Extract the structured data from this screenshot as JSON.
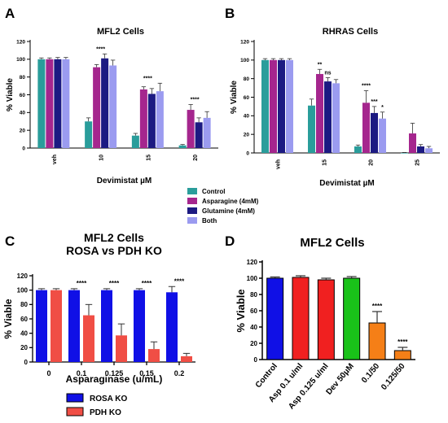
{
  "chart_data": [
    {
      "panel": "A",
      "type": "bar",
      "title": "MFL2 Cells",
      "xlabel": "Devimistat µM",
      "ylabel": "% Viable",
      "ylim": [
        0,
        120
      ],
      "yticks": [
        0,
        20,
        40,
        60,
        80,
        100,
        120
      ],
      "grid": false,
      "legend_position": "shared-below-A-B",
      "categories": [
        "veh",
        "10",
        "15",
        "20"
      ],
      "series": [
        {
          "name": "Control",
          "color": "#2a9d9b",
          "values": [
            100,
            30,
            14,
            3
          ],
          "errors": [
            1.5,
            4,
            2.5,
            1
          ]
        },
        {
          "name": "Asparagine (4mM)",
          "color": "#a5268e",
          "values": [
            100,
            91,
            66,
            43
          ],
          "errors": [
            1.5,
            3,
            3,
            6
          ]
        },
        {
          "name": "Glutamine (4mM)",
          "color": "#1c1a82",
          "values": [
            100,
            101,
            61,
            29
          ],
          "errors": [
            2,
            5,
            6,
            5
          ]
        },
        {
          "name": "Both",
          "color": "#9b9bf0",
          "values": [
            100,
            93,
            64,
            34
          ],
          "errors": [
            2,
            6,
            9,
            7
          ]
        }
      ],
      "annotations": [
        {
          "category": "10",
          "text": "****"
        },
        {
          "category": "15",
          "text": "****"
        },
        {
          "category": "20",
          "text": "****"
        }
      ]
    },
    {
      "panel": "B",
      "type": "bar",
      "title": "RHRAS Cells",
      "xlabel": "Devimistat µM",
      "ylabel": "% Viable",
      "ylim": [
        0,
        120
      ],
      "yticks": [
        0,
        20,
        40,
        60,
        80,
        100,
        120
      ],
      "grid": false,
      "categories": [
        "veh",
        "15",
        "20",
        "25"
      ],
      "series": [
        {
          "name": "Control",
          "color": "#2a9d9b",
          "values": [
            100,
            51,
            7,
            0
          ],
          "errors": [
            1.5,
            7,
            1.5,
            0.5
          ]
        },
        {
          "name": "Asparagine (4mM)",
          "color": "#a5268e",
          "values": [
            100,
            85,
            54,
            21
          ],
          "errors": [
            1.5,
            5,
            13,
            11
          ]
        },
        {
          "name": "Glutamine (4mM)",
          "color": "#1c1a82",
          "values": [
            100,
            77,
            43,
            7
          ],
          "errors": [
            1.5,
            4,
            7,
            2
          ]
        },
        {
          "name": "Both",
          "color": "#9b9bf0",
          "values": [
            100,
            75,
            37,
            5
          ],
          "errors": [
            1.5,
            4,
            7,
            2
          ]
        }
      ],
      "annotations": [
        {
          "category": "15",
          "series_index": 1,
          "text": "**"
        },
        {
          "category": "15",
          "series_index": 2,
          "text": "ns"
        },
        {
          "category": "20",
          "series_index": 1,
          "text": "****"
        },
        {
          "category": "20",
          "series_index": 2,
          "text": "***"
        },
        {
          "category": "20",
          "series_index": 3,
          "text": "*"
        }
      ]
    },
    {
      "panel": "C",
      "type": "bar",
      "title": "MFL2 Cells",
      "subtitle": "ROSA vs PDH KO",
      "xlabel": "Asparaginase (u/mL)",
      "ylabel": "% Viable",
      "ylim": [
        0,
        120
      ],
      "yticks": [
        0,
        20,
        40,
        60,
        80,
        100,
        120
      ],
      "grid": false,
      "legend_position": "below",
      "categories": [
        "0",
        "0.1",
        "0.125",
        "0.15",
        "0.2"
      ],
      "series": [
        {
          "name": "ROSA KO",
          "color": "#1010e6",
          "values": [
            100,
            100,
            100,
            100,
            97
          ],
          "errors": [
            2,
            2,
            2,
            2,
            8
          ]
        },
        {
          "name": "PDH KO",
          "color": "#f04e45",
          "values": [
            100,
            65,
            37,
            18,
            8
          ],
          "errors": [
            2,
            15,
            16,
            10,
            4
          ]
        }
      ],
      "annotations": [
        {
          "category": "0.1",
          "text": "****"
        },
        {
          "category": "0.125",
          "text": "****"
        },
        {
          "category": "0.15",
          "text": "****"
        },
        {
          "category": "0.2",
          "text": "****"
        }
      ]
    },
    {
      "panel": "D",
      "type": "bar",
      "title": "MFL2 Cells",
      "xlabel": "",
      "ylabel": "% Viable",
      "ylim": [
        0,
        120
      ],
      "yticks": [
        0,
        20,
        40,
        60,
        80,
        100,
        120
      ],
      "grid": false,
      "categories": [
        "Control",
        "Asp 0.1 u/ml",
        "Asp 0.125 u/ml",
        "Dev 50μM",
        "0.1/50",
        "0.125/50"
      ],
      "colors": [
        "#1010e6",
        "#f02020",
        "#f02020",
        "#19c219",
        "#f57f17",
        "#f57f17"
      ],
      "values": [
        100,
        101,
        98,
        100,
        45,
        11
      ],
      "errors": [
        1.5,
        2,
        2,
        2,
        14,
        4
      ],
      "annotations": [
        {
          "category": "0.1/50",
          "text": "****"
        },
        {
          "category": "0.125/50",
          "text": "****"
        }
      ]
    }
  ],
  "panel_labels": [
    "A",
    "B",
    "C",
    "D"
  ]
}
